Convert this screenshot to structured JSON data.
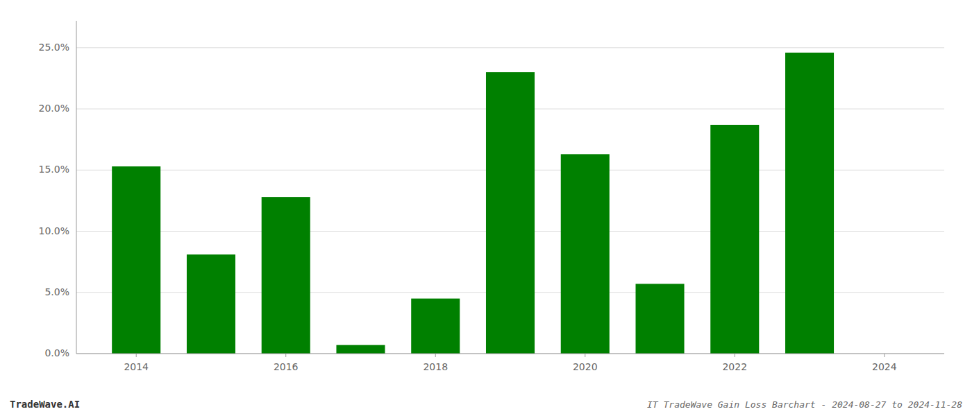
{
  "chart_data": {
    "type": "bar",
    "title": "IT TradeWave Gain Loss Barchart - 2024-08-27 to 2024-11-28",
    "annotations": [
      "TradeWave.AI"
    ],
    "x": [
      2014,
      2015,
      2016,
      2017,
      2018,
      2019,
      2020,
      2021,
      2022,
      2023
    ],
    "values": [
      0.153,
      0.081,
      0.128,
      0.007,
      0.045,
      0.23,
      0.163,
      0.057,
      0.187,
      0.246
    ],
    "color": "#008000",
    "xlim": [
      2013.2,
      2024.8
    ],
    "xticks": [
      2014,
      2016,
      2018,
      2020,
      2022,
      2024
    ],
    "ylim": [
      0,
      0.272
    ],
    "yticks": [
      {
        "value": 0.0,
        "label": "0.0%"
      },
      {
        "value": 0.05,
        "label": "5.0%"
      },
      {
        "value": 0.1,
        "label": "10.0%"
      },
      {
        "value": 0.15,
        "label": "15.0%"
      },
      {
        "value": 0.2,
        "label": "20.0%"
      },
      {
        "value": 0.25,
        "label": "25.0%"
      }
    ],
    "grid": true
  }
}
